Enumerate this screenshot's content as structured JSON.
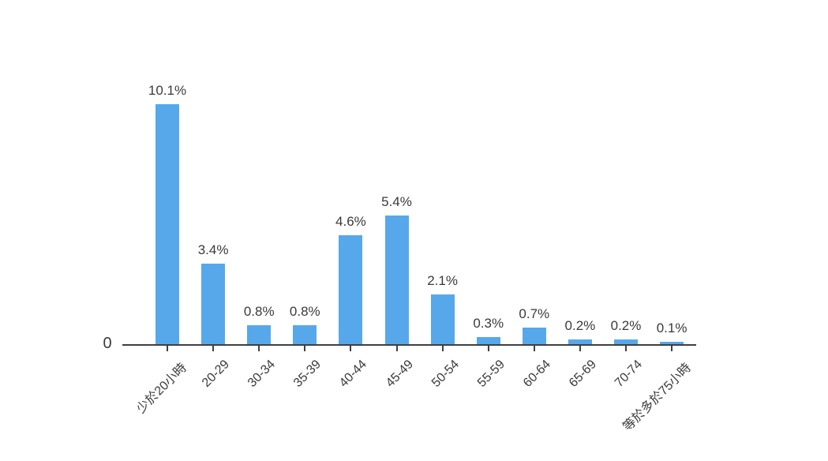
{
  "chart_data": {
    "type": "bar",
    "title": "",
    "xlabel": "",
    "ylabel": "",
    "categories": [
      "少於20小時",
      "20-29",
      "30-34",
      "35-39",
      "40-44",
      "45-49",
      "50-54",
      "55-59",
      "60-64",
      "65-69",
      "70-74",
      "等於多於75小時"
    ],
    "values": [
      10.1,
      3.4,
      0.8,
      0.8,
      4.6,
      5.4,
      2.1,
      0.3,
      0.7,
      0.2,
      0.2,
      0.1
    ],
    "value_labels": [
      "10.1%",
      "3.4%",
      "0.8%",
      "0.8%",
      "4.6%",
      "5.4%",
      "2.1%",
      "0.3%",
      "0.7%",
      "0.2%",
      "0.2%",
      "0.1%"
    ],
    "y_axis_ticks": [
      "0"
    ],
    "ylim": [
      0,
      11
    ],
    "grid": false,
    "legend_position": "none",
    "bar_color": "#57a8ea",
    "axis_color": "#3f3f3f",
    "text_color": "#3a3a3a"
  }
}
